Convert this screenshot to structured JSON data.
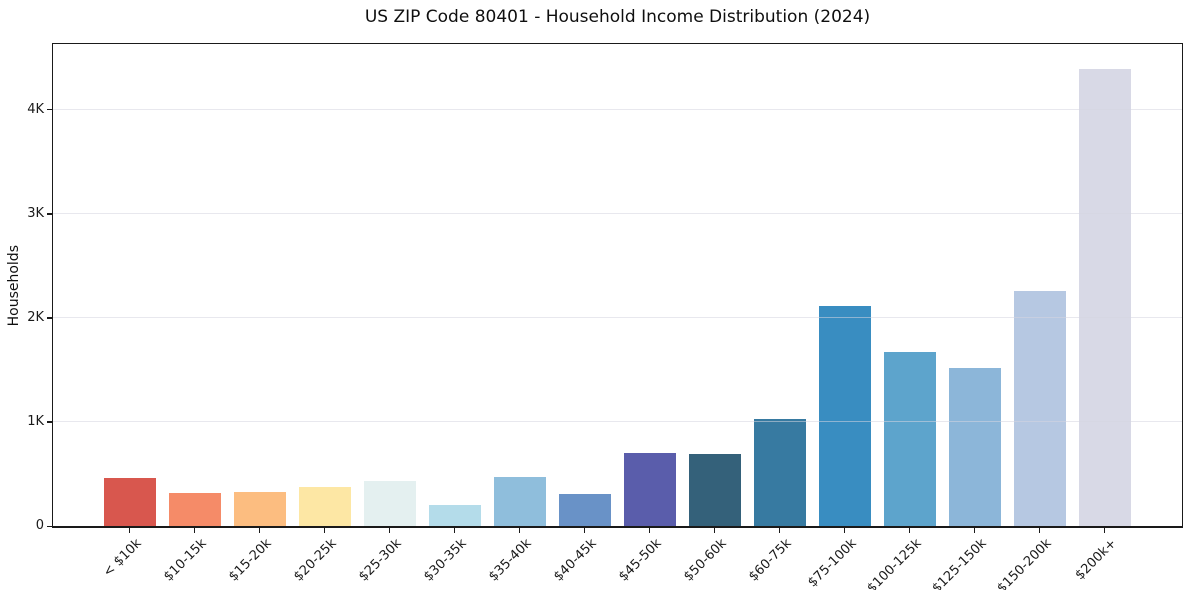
{
  "chart_data": {
    "type": "bar",
    "title": "US ZIP Code 80401 - Household Income Distribution (2024)",
    "xlabel": "",
    "ylabel": "Households",
    "categories": [
      "< $10k",
      "$10-15k",
      "$15-20k",
      "$20-25k",
      "$25-30k",
      "$30-35k",
      "$35-40k",
      "$40-45k",
      "$45-50k",
      "$50-60k",
      "$60-75k",
      "$75-100k",
      "$100-125k",
      "$125-150k",
      "$150-200k",
      "$200k+"
    ],
    "values": [
      460,
      315,
      330,
      370,
      435,
      205,
      475,
      305,
      700,
      690,
      1030,
      2115,
      1670,
      1520,
      2260,
      4390
    ],
    "bar_colors": [
      "#d8574e",
      "#f58b68",
      "#fcbd80",
      "#fde7a4",
      "#e4f0f0",
      "#b4dcea",
      "#8fbedc",
      "#6992c7",
      "#5a5dab",
      "#34617a",
      "#377aa1",
      "#398dc1",
      "#5da4cc",
      "#8cb6d9",
      "#b6c8e2",
      "#d8d9e6"
    ],
    "ylim": [
      0,
      4630
    ],
    "yticks": {
      "values": [
        0,
        1000,
        2000,
        3000,
        4000
      ],
      "labels": [
        "0",
        "1K",
        "2K",
        "3K",
        "4K"
      ]
    },
    "grid": "horizontal-above-bars",
    "legend": "none",
    "background_color": "#ffffff",
    "grid_color": "#e8e8ee",
    "spine_color": "#1a1a1a"
  }
}
